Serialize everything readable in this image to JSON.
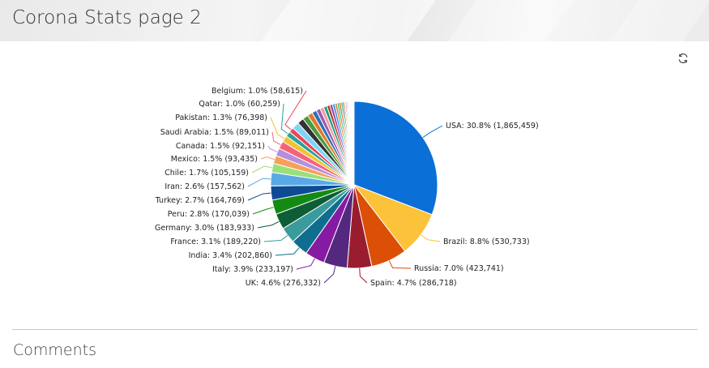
{
  "page": {
    "title": "Corona Stats page 2"
  },
  "toolbar": {
    "refresh_icon": "refresh-icon"
  },
  "comments": {
    "title": "Comments"
  },
  "chart_data": {
    "type": "pie",
    "slices": [
      {
        "label": "USA",
        "value": 1865459,
        "percent": "30.8%",
        "color": "#0a6fd7"
      },
      {
        "label": "Brazil",
        "value": 530733,
        "percent": "8.8%",
        "color": "#fcc33a"
      },
      {
        "label": "Russia",
        "value": 423741,
        "percent": "7.0%",
        "color": "#db4f06"
      },
      {
        "label": "Spain",
        "value": 286718,
        "percent": "4.7%",
        "color": "#9a1d2f"
      },
      {
        "label": "UK",
        "value": 276332,
        "percent": "4.6%",
        "color": "#55287f"
      },
      {
        "label": "Italy",
        "value": 233197,
        "percent": "3.9%",
        "color": "#861aa2"
      },
      {
        "label": "India",
        "value": 202860,
        "percent": "3.4%",
        "color": "#0f6e8f"
      },
      {
        "label": "France",
        "value": 189220,
        "percent": "3.1%",
        "color": "#3b9a9c"
      },
      {
        "label": "Germany",
        "value": 183933,
        "percent": "3.0%",
        "color": "#0d5e37"
      },
      {
        "label": "Peru",
        "value": 170039,
        "percent": "2.8%",
        "color": "#138a12"
      },
      {
        "label": "Turkey",
        "value": 164769,
        "percent": "2.7%",
        "color": "#0e4b95"
      },
      {
        "label": "Iran",
        "value": 157562,
        "percent": "2.6%",
        "color": "#5aa9e6"
      },
      {
        "label": "Chile",
        "value": 105159,
        "percent": "1.7%",
        "color": "#99e07a"
      },
      {
        "label": "Mexico",
        "value": 93435,
        "percent": "1.5%",
        "color": "#f6a15a"
      },
      {
        "label": "Canada",
        "value": 92151,
        "percent": "1.5%",
        "color": "#b68fdc"
      },
      {
        "label": "Saudi Arabia",
        "value": 89011,
        "percent": "1.5%",
        "color": "#f4637a"
      },
      {
        "label": "Pakistan",
        "value": 76398,
        "percent": "1.3%",
        "color": "#f1c232"
      },
      {
        "label": "Qatar",
        "value": 60259,
        "percent": "1.0%",
        "color": "#2aa198"
      },
      {
        "label": "Belgium",
        "value": 58615,
        "percent": "1.0%",
        "color": "#e8455c"
      }
    ],
    "small_slice_colors": [
      "#7fd4f5",
      "#333333",
      "#4a9b3e",
      "#e07b2a",
      "#2f6fb5",
      "#9b59b6",
      "#f39c9c",
      "#16a085",
      "#c0392b",
      "#8e44ad",
      "#3498db",
      "#e67e22",
      "#1abc9c",
      "#d35400",
      "#27ae60",
      "#2c3e50",
      "#f1c40f",
      "#e84393",
      "#00cec9",
      "#6c5ce7",
      "#fdcb6e",
      "#a29bfe",
      "#55efc4",
      "#fab1a0",
      "#74b9ff",
      "#ff7675",
      "#81ecec",
      "#b2bec3",
      "#dfe6e9",
      "#636e72"
    ]
  }
}
